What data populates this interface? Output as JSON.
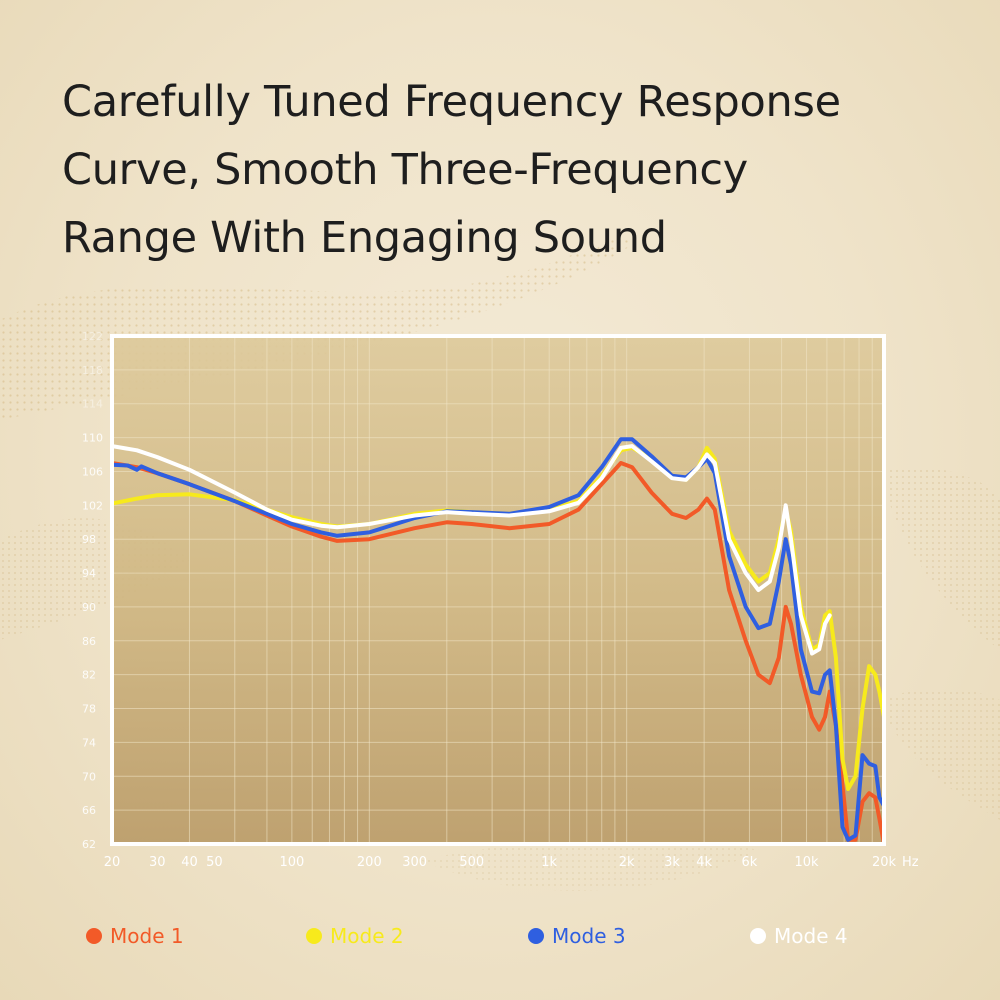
{
  "heading": {
    "lines": [
      "Carefully Tuned Frequency Response",
      "Curve, Smooth Three-Frequency",
      "Range With Engaging Sound"
    ]
  },
  "colors": {
    "mode1": "#f25a28",
    "mode2": "#f7ea1c",
    "mode3": "#2f5fe0",
    "mode4": "#ffffff",
    "grid": "#f1e6c8",
    "frame": "#ffffff",
    "tick_text": "#ffffff"
  },
  "chart_data": {
    "type": "line",
    "xscale": "log",
    "xlim": [
      20,
      20000
    ],
    "ylim": [
      62,
      122
    ],
    "xticks": [
      20,
      30,
      40,
      50,
      100,
      200,
      300,
      500,
      1000,
      2000,
      3000,
      4000,
      6000,
      10000,
      20000
    ],
    "xtick_labels": [
      "20",
      "30",
      "40",
      "50",
      "100",
      "200",
      "300",
      "500",
      "1k",
      "2k",
      "3k",
      "4k",
      "6k",
      "10k",
      "20k"
    ],
    "x_unit": "Hz",
    "yticks": [
      62,
      66,
      70,
      74,
      78,
      82,
      86,
      90,
      94,
      98,
      102,
      106,
      110,
      114,
      118,
      122
    ],
    "ytick_labels": [
      "62",
      "66",
      "70",
      "74",
      "78",
      "82",
      "86",
      "90",
      "94",
      "98",
      "102",
      "106",
      "110",
      "114",
      "118",
      "122"
    ],
    "grid": true,
    "legend_position": "bottom",
    "series": [
      {
        "name": "Mode 1",
        "points": [
          [
            20,
            107
          ],
          [
            25,
            106.5
          ],
          [
            30,
            105.8
          ],
          [
            40,
            104.5
          ],
          [
            60,
            102.5
          ],
          [
            80,
            100.8
          ],
          [
            100,
            99.5
          ],
          [
            130,
            98.3
          ],
          [
            150,
            97.8
          ],
          [
            200,
            98
          ],
          [
            300,
            99.3
          ],
          [
            400,
            100
          ],
          [
            500,
            99.8
          ],
          [
            700,
            99.3
          ],
          [
            1000,
            99.8
          ],
          [
            1300,
            101.5
          ],
          [
            1600,
            104.5
          ],
          [
            1900,
            107
          ],
          [
            2100,
            106.5
          ],
          [
            2500,
            103.5
          ],
          [
            3000,
            101
          ],
          [
            3400,
            100.5
          ],
          [
            3800,
            101.5
          ],
          [
            4100,
            102.8
          ],
          [
            4400,
            101.5
          ],
          [
            5000,
            92
          ],
          [
            5800,
            86
          ],
          [
            6500,
            82
          ],
          [
            7200,
            81
          ],
          [
            7800,
            84
          ],
          [
            8300,
            90
          ],
          [
            8700,
            88
          ],
          [
            9500,
            82
          ],
          [
            10500,
            77
          ],
          [
            11200,
            75.5
          ],
          [
            11800,
            77
          ],
          [
            12300,
            80
          ],
          [
            13000,
            76
          ],
          [
            13800,
            69
          ],
          [
            14500,
            62.5
          ],
          [
            15500,
            62.5
          ],
          [
            16500,
            67
          ],
          [
            17500,
            68
          ],
          [
            18500,
            67.5
          ],
          [
            19200,
            65
          ],
          [
            20000,
            62
          ]
        ]
      },
      {
        "name": "Mode 2",
        "points": [
          [
            20,
            102.2
          ],
          [
            25,
            102.8
          ],
          [
            30,
            103.2
          ],
          [
            40,
            103.3
          ],
          [
            60,
            102.6
          ],
          [
            80,
            101.5
          ],
          [
            100,
            100.6
          ],
          [
            130,
            99.8
          ],
          [
            150,
            99.5
          ],
          [
            200,
            99.8
          ],
          [
            300,
            101
          ],
          [
            400,
            101.4
          ],
          [
            500,
            101.2
          ],
          [
            700,
            101
          ],
          [
            1000,
            101.5
          ],
          [
            1300,
            102.5
          ],
          [
            1600,
            105.5
          ],
          [
            1900,
            108.5
          ],
          [
            2100,
            108.8
          ],
          [
            2500,
            107.5
          ],
          [
            3000,
            105.5
          ],
          [
            3400,
            105
          ],
          [
            3800,
            106.5
          ],
          [
            4100,
            108.8
          ],
          [
            4400,
            107.5
          ],
          [
            5000,
            99
          ],
          [
            5800,
            95
          ],
          [
            6500,
            93
          ],
          [
            7200,
            94
          ],
          [
            7800,
            98
          ],
          [
            8300,
            101.5
          ],
          [
            8700,
            99
          ],
          [
            9500,
            90
          ],
          [
            10500,
            85
          ],
          [
            11200,
            85.5
          ],
          [
            11800,
            89
          ],
          [
            12300,
            89.5
          ],
          [
            13000,
            84
          ],
          [
            13800,
            72
          ],
          [
            14500,
            68.5
          ],
          [
            15500,
            70
          ],
          [
            16500,
            78
          ],
          [
            17500,
            83
          ],
          [
            18500,
            82
          ],
          [
            19200,
            80
          ],
          [
            20000,
            77
          ]
        ]
      },
      {
        "name": "Mode 3",
        "points": [
          [
            20,
            106.8
          ],
          [
            23,
            106.7
          ],
          [
            25,
            106.2
          ],
          [
            26,
            106.6
          ],
          [
            30,
            105.8
          ],
          [
            40,
            104.5
          ],
          [
            60,
            102.5
          ],
          [
            80,
            101
          ],
          [
            100,
            99.8
          ],
          [
            130,
            98.8
          ],
          [
            150,
            98.4
          ],
          [
            200,
            98.8
          ],
          [
            300,
            100.5
          ],
          [
            400,
            101.3
          ],
          [
            500,
            101.2
          ],
          [
            700,
            101
          ],
          [
            1000,
            101.8
          ],
          [
            1300,
            103.2
          ],
          [
            1600,
            106.5
          ],
          [
            1900,
            109.8
          ],
          [
            2100,
            109.8
          ],
          [
            2500,
            107.8
          ],
          [
            3000,
            105.5
          ],
          [
            3400,
            105.3
          ],
          [
            3800,
            106.5
          ],
          [
            4100,
            107.5
          ],
          [
            4400,
            105.8
          ],
          [
            5000,
            96
          ],
          [
            5800,
            90
          ],
          [
            6500,
            87.5
          ],
          [
            7200,
            88
          ],
          [
            7800,
            93
          ],
          [
            8300,
            98
          ],
          [
            8700,
            95
          ],
          [
            9500,
            85
          ],
          [
            10500,
            80
          ],
          [
            11200,
            79.8
          ],
          [
            11800,
            82
          ],
          [
            12300,
            82.5
          ],
          [
            13000,
            76
          ],
          [
            13800,
            64
          ],
          [
            14500,
            62.5
          ],
          [
            15500,
            63
          ],
          [
            16500,
            72.5
          ],
          [
            17500,
            71.5
          ],
          [
            18500,
            71.2
          ],
          [
            19200,
            67.5
          ],
          [
            20000,
            66.5
          ]
        ]
      },
      {
        "name": "Mode 4",
        "points": [
          [
            20,
            109
          ],
          [
            25,
            108.5
          ],
          [
            30,
            107.7
          ],
          [
            40,
            106.2
          ],
          [
            60,
            103.5
          ],
          [
            80,
            101.5
          ],
          [
            100,
            100.3
          ],
          [
            130,
            99.6
          ],
          [
            150,
            99.4
          ],
          [
            200,
            99.8
          ],
          [
            300,
            100.8
          ],
          [
            400,
            101.2
          ],
          [
            500,
            101
          ],
          [
            700,
            100.8
          ],
          [
            1000,
            101.3
          ],
          [
            1300,
            102.3
          ],
          [
            1600,
            105.2
          ],
          [
            1900,
            108.8
          ],
          [
            2100,
            109
          ],
          [
            2500,
            107.2
          ],
          [
            3000,
            105.2
          ],
          [
            3400,
            105
          ],
          [
            3800,
            106.5
          ],
          [
            4100,
            108
          ],
          [
            4400,
            107
          ],
          [
            5000,
            98
          ],
          [
            5800,
            94
          ],
          [
            6500,
            92
          ],
          [
            7200,
            93
          ],
          [
            7800,
            97
          ],
          [
            8300,
            102
          ],
          [
            8700,
            98
          ],
          [
            9500,
            89
          ],
          [
            10500,
            84.5
          ],
          [
            11200,
            85
          ],
          [
            11800,
            88
          ],
          [
            12300,
            89
          ]
        ]
      }
    ]
  }
}
